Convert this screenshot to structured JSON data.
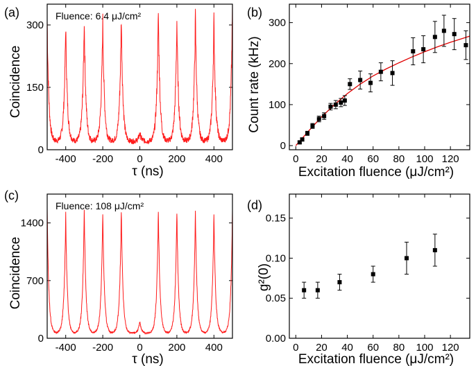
{
  "panels": {
    "a": {
      "label": "(a)",
      "annotation": "Fluence: 6.4 μJ/cm²",
      "ylabel": "Coincidence",
      "xlabel": "τ (ns)"
    },
    "b": {
      "label": "(b)",
      "ylabel": "Count rate (kHz)",
      "xlabel": "Excitation fluence (μJ/cm²)"
    },
    "c": {
      "label": "(c)",
      "annotation": "Fluence: 108 μJ/cm²",
      "ylabel": "Coincidence",
      "xlabel": "τ (ns)"
    },
    "d": {
      "label": "(d)",
      "ylabel": "g²(0)",
      "xlabel": "Excitation fluence (μJ/cm²)"
    }
  },
  "colors": {
    "trace": "#ff1a1a",
    "fit": "#e00000",
    "points": "#000000"
  },
  "chart_data": [
    {
      "id": "a",
      "type": "line",
      "title": "",
      "annotation": "Fluence: 6.4 μJ/cm²",
      "xlabel": "τ (ns)",
      "ylabel": "Coincidence",
      "xlim": [
        -500,
        500
      ],
      "ylim": [
        0,
        350
      ],
      "xticks": [
        -400,
        -200,
        0,
        200,
        400
      ],
      "yticks": [
        0,
        150,
        300
      ],
      "series": [
        {
          "peak_x": [
            -500,
            -400,
            -300,
            -200,
            -100,
            0,
            100,
            200,
            300,
            400,
            500
          ],
          "peak_heights": [
            310,
            300,
            312,
            308,
            320,
            40,
            330,
            310,
            320,
            310,
            345
          ],
          "baseline": 20
        }
      ]
    },
    {
      "id": "b",
      "type": "scatter",
      "title": "",
      "xlabel": "Excitation fluence (μJ/cm²)",
      "ylabel": "Count rate (kHz)",
      "xlim": [
        -5,
        135
      ],
      "ylim": [
        -10,
        345
      ],
      "xticks": [
        0,
        20,
        40,
        60,
        80,
        100,
        120
      ],
      "yticks": [
        0,
        100,
        200,
        300
      ],
      "series": [
        {
          "x": [
            3,
            5,
            9,
            13,
            18,
            22,
            27,
            31,
            35,
            38,
            42,
            50,
            58,
            66,
            75,
            91,
            99,
            108,
            115,
            123,
            132
          ],
          "y": [
            8,
            15,
            30,
            48,
            65,
            72,
            95,
            100,
            105,
            110,
            150,
            160,
            153,
            180,
            177,
            230,
            235,
            265,
            280,
            272,
            245
          ],
          "err": [
            3,
            4,
            5,
            6,
            7,
            8,
            8,
            10,
            10,
            12,
            13,
            22,
            22,
            22,
            30,
            33,
            33,
            38,
            38,
            38,
            35
          ]
        }
      ],
      "fit": {
        "x": [
          0,
          10,
          20,
          30,
          40,
          50,
          60,
          70,
          80,
          90,
          100,
          110,
          120,
          130,
          135
        ],
        "y": [
          0,
          36,
          70,
          100,
          127,
          150,
          170,
          187,
          202,
          216,
          229,
          241,
          252,
          262,
          267
        ]
      }
    },
    {
      "id": "c",
      "type": "line",
      "title": "",
      "annotation": "Fluence: 108 μJ/cm²",
      "xlabel": "τ (ns)",
      "ylabel": "Coincidence",
      "xlim": [
        -500,
        500
      ],
      "ylim": [
        0,
        1750
      ],
      "xticks": [
        -400,
        -200,
        0,
        200,
        400
      ],
      "yticks": [
        0,
        700,
        1400
      ],
      "series": [
        {
          "peak_x": [
            -500,
            -400,
            -300,
            -200,
            -100,
            0,
            100,
            200,
            300,
            400,
            500
          ],
          "peak_heights": [
            1560,
            1490,
            1560,
            1530,
            1560,
            200,
            1560,
            1550,
            1520,
            1510,
            1560
          ],
          "baseline": 60
        }
      ]
    },
    {
      "id": "d",
      "type": "scatter",
      "title": "",
      "xlabel": "Excitation fluence (μJ/cm²)",
      "ylabel": "g²(0)",
      "xlim": [
        -5,
        135
      ],
      "ylim": [
        0,
        0.18
      ],
      "xticks": [
        0,
        20,
        40,
        60,
        80,
        100,
        120
      ],
      "yticks": [
        0.0,
        0.05,
        0.1,
        0.15
      ],
      "series": [
        {
          "x": [
            6.4,
            17,
            34,
            60,
            86,
            108
          ],
          "y": [
            0.06,
            0.06,
            0.07,
            0.08,
            0.1,
            0.11
          ],
          "err": [
            0.01,
            0.01,
            0.01,
            0.01,
            0.02,
            0.02
          ]
        }
      ]
    }
  ]
}
